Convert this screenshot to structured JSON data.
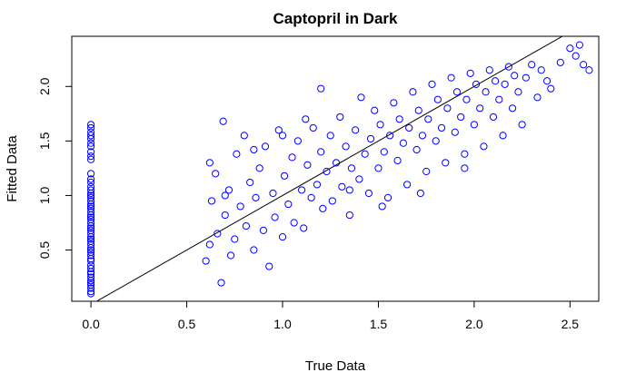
{
  "chart_data": {
    "type": "scatter",
    "title": "Captopril in Dark",
    "xlabel": "True Data",
    "ylabel": "Fitted Data",
    "xlim": [
      -0.1,
      2.65
    ],
    "ylim": [
      0.03,
      2.46
    ],
    "x_ticks": [
      0.0,
      0.5,
      1.0,
      1.5,
      2.0,
      2.5
    ],
    "x_tick_labels": [
      "0.0",
      "0.5",
      "1.0",
      "1.5",
      "2.0",
      "2.5"
    ],
    "y_ticks": [
      0.5,
      1.0,
      1.5,
      2.0
    ],
    "y_tick_labels": [
      "0.5",
      "1.0",
      "1.5",
      "2.0"
    ],
    "point_color": "#0000FF",
    "line_color": "#000000",
    "reference_line": {
      "intercept": 0.0,
      "slope": 1.0
    },
    "grid": false,
    "legend": "none",
    "zero_group": {
      "x": 0.0,
      "y": [
        0.1,
        0.12,
        0.15,
        0.18,
        0.2,
        0.22,
        0.25,
        0.28,
        0.3,
        0.33,
        0.36,
        0.4,
        0.42,
        0.45,
        0.48,
        0.5,
        0.52,
        0.55,
        0.58,
        0.6,
        0.62,
        0.65,
        0.68,
        0.7,
        0.72,
        0.75,
        0.78,
        0.8,
        0.82,
        0.85,
        0.88,
        0.9,
        0.92,
        0.95,
        0.98,
        1.0,
        1.02,
        1.05,
        1.08,
        1.12,
        1.15,
        1.2,
        1.33,
        1.36,
        1.4,
        1.45,
        1.48,
        1.52,
        1.55,
        1.58,
        1.62,
        1.65
      ]
    },
    "main_cloud": {
      "points": [
        [
          0.6,
          0.4
        ],
        [
          0.62,
          0.55
        ],
        [
          0.63,
          0.95
        ],
        [
          0.65,
          1.2
        ],
        [
          0.66,
          0.65
        ],
        [
          0.68,
          0.2
        ],
        [
          0.69,
          1.68
        ],
        [
          0.7,
          0.82
        ],
        [
          0.72,
          1.05
        ],
        [
          0.73,
          0.45
        ],
        [
          0.75,
          0.6
        ],
        [
          0.76,
          1.38
        ],
        [
          0.78,
          0.9
        ],
        [
          0.8,
          1.55
        ],
        [
          0.81,
          0.72
        ],
        [
          0.83,
          1.12
        ],
        [
          0.85,
          0.5
        ],
        [
          0.86,
          0.98
        ],
        [
          0.88,
          1.25
        ],
        [
          0.9,
          0.68
        ],
        [
          0.91,
          1.45
        ],
        [
          0.93,
          0.35
        ],
        [
          0.95,
          1.02
        ],
        [
          0.96,
          0.8
        ],
        [
          0.98,
          1.6
        ],
        [
          1.0,
          0.62
        ],
        [
          1.01,
          1.18
        ],
        [
          1.03,
          0.92
        ],
        [
          1.05,
          1.35
        ],
        [
          1.06,
          0.75
        ],
        [
          1.08,
          1.5
        ],
        [
          1.1,
          1.05
        ],
        [
          1.11,
          0.7
        ],
        [
          1.13,
          1.28
        ],
        [
          1.15,
          0.98
        ],
        [
          1.16,
          1.62
        ],
        [
          1.18,
          1.1
        ],
        [
          1.2,
          1.4
        ],
        [
          1.21,
          0.88
        ],
        [
          1.23,
          1.22
        ],
        [
          1.25,
          1.55
        ],
        [
          1.26,
          0.95
        ],
        [
          1.28,
          1.3
        ],
        [
          1.3,
          1.72
        ],
        [
          1.31,
          1.08
        ],
        [
          1.33,
          1.45
        ],
        [
          1.35,
          0.82
        ],
        [
          1.36,
          1.25
        ],
        [
          1.38,
          1.6
        ],
        [
          1.4,
          1.15
        ],
        [
          1.41,
          1.9
        ],
        [
          1.43,
          1.38
        ],
        [
          1.45,
          1.02
        ],
        [
          1.46,
          1.52
        ],
        [
          1.48,
          1.78
        ],
        [
          1.5,
          1.25
        ],
        [
          1.51,
          1.65
        ],
        [
          1.53,
          1.4
        ],
        [
          1.55,
          0.98
        ],
        [
          1.56,
          1.55
        ],
        [
          1.58,
          1.85
        ],
        [
          1.6,
          1.32
        ],
        [
          1.61,
          1.7
        ],
        [
          1.63,
          1.48
        ],
        [
          1.65,
          1.1
        ],
        [
          1.66,
          1.62
        ],
        [
          1.68,
          1.95
        ],
        [
          1.7,
          1.42
        ],
        [
          1.71,
          1.78
        ],
        [
          1.73,
          1.55
        ],
        [
          1.75,
          1.22
        ],
        [
          1.76,
          1.7
        ],
        [
          1.78,
          2.02
        ],
        [
          1.8,
          1.5
        ],
        [
          1.81,
          1.88
        ],
        [
          1.83,
          1.62
        ],
        [
          1.85,
          1.3
        ],
        [
          1.86,
          1.8
        ],
        [
          1.88,
          2.08
        ],
        [
          1.9,
          1.58
        ],
        [
          1.91,
          1.95
        ],
        [
          1.93,
          1.72
        ],
        [
          1.95,
          1.38
        ],
        [
          1.96,
          1.88
        ],
        [
          1.98,
          2.12
        ],
        [
          2.0,
          1.65
        ],
        [
          2.01,
          2.02
        ],
        [
          2.03,
          1.8
        ],
        [
          2.05,
          1.45
        ],
        [
          2.06,
          1.95
        ],
        [
          2.08,
          2.15
        ],
        [
          2.1,
          1.72
        ],
        [
          2.11,
          2.05
        ],
        [
          2.13,
          1.88
        ],
        [
          2.15,
          1.55
        ],
        [
          2.16,
          2.02
        ],
        [
          2.18,
          2.18
        ],
        [
          2.2,
          1.8
        ],
        [
          2.21,
          2.1
        ],
        [
          2.23,
          1.95
        ],
        [
          2.25,
          1.65
        ],
        [
          2.27,
          2.08
        ],
        [
          2.3,
          2.2
        ],
        [
          2.33,
          1.9
        ],
        [
          2.35,
          2.15
        ],
        [
          2.38,
          2.05
        ],
        [
          2.4,
          1.98
        ],
        [
          2.45,
          2.22
        ],
        [
          2.5,
          2.35
        ],
        [
          2.53,
          2.28
        ],
        [
          2.55,
          2.38
        ],
        [
          2.57,
          2.2
        ],
        [
          2.6,
          2.15
        ],
        [
          0.62,
          1.3
        ],
        [
          0.7,
          1.0
        ],
        [
          0.85,
          1.42
        ],
        [
          1.0,
          1.55
        ],
        [
          1.12,
          1.7
        ],
        [
          1.2,
          1.98
        ],
        [
          1.35,
          1.05
        ],
        [
          1.52,
          0.9
        ],
        [
          1.72,
          1.02
        ],
        [
          1.95,
          1.25
        ]
      ]
    }
  }
}
